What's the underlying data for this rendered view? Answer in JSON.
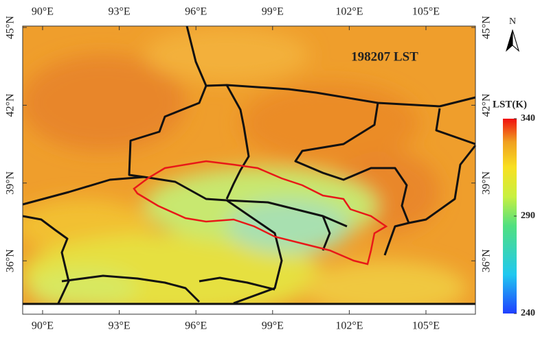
{
  "map": {
    "title": "198207 LST",
    "north": "N",
    "lon_ticks": [
      {
        "value": 90,
        "label": "90°E"
      },
      {
        "value": 93,
        "label": "93°E"
      },
      {
        "value": 96,
        "label": "96°E"
      },
      {
        "value": 99,
        "label": "99°E"
      },
      {
        "value": 102,
        "label": "102°E"
      },
      {
        "value": 105,
        "label": "105°E"
      }
    ],
    "lat_ticks": [
      {
        "value": 45,
        "label": "45°N"
      },
      {
        "value": 42,
        "label": "42°N"
      },
      {
        "value": 39,
        "label": "39°N"
      },
      {
        "value": 36,
        "label": "36°N"
      }
    ],
    "colorbar": {
      "title": "LST(K)",
      "range": [
        240,
        340
      ],
      "ticks": [
        240,
        290,
        340
      ]
    }
  }
}
